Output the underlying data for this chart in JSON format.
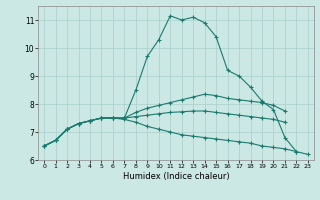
{
  "xlabel": "Humidex (Indice chaleur)",
  "xlim": [
    -0.5,
    23.5
  ],
  "ylim": [
    6.0,
    11.5
  ],
  "yticks": [
    6,
    7,
    8,
    9,
    10,
    11
  ],
  "xticks": [
    0,
    1,
    2,
    3,
    4,
    5,
    6,
    7,
    8,
    9,
    10,
    11,
    12,
    13,
    14,
    15,
    16,
    17,
    18,
    19,
    20,
    21,
    22,
    23
  ],
  "background_color": "#cce8e4",
  "grid_color": "#aacfcb",
  "line_color": "#1a7a6e",
  "lines": [
    {
      "x": [
        0,
        1,
        2,
        3,
        4,
        5,
        6,
        7,
        8,
        9,
        10,
        11,
        12,
        13,
        14,
        15,
        16,
        17,
        18,
        19,
        20,
        21,
        22
      ],
      "y": [
        6.5,
        6.7,
        7.1,
        7.3,
        7.4,
        7.5,
        7.5,
        7.5,
        8.5,
        9.7,
        10.3,
        11.15,
        11.0,
        11.1,
        10.9,
        10.4,
        9.2,
        9.0,
        8.6,
        8.1,
        7.8,
        6.8,
        6.3
      ]
    },
    {
      "x": [
        0,
        1,
        2,
        3,
        4,
        5,
        6,
        7,
        8,
        9,
        10,
        11,
        12,
        13,
        14,
        15,
        16,
        17,
        18,
        19,
        20,
        21
      ],
      "y": [
        6.5,
        6.7,
        7.1,
        7.3,
        7.4,
        7.5,
        7.5,
        7.5,
        7.7,
        7.85,
        7.95,
        8.05,
        8.15,
        8.25,
        8.35,
        8.3,
        8.2,
        8.15,
        8.1,
        8.05,
        7.95,
        7.75
      ]
    },
    {
      "x": [
        0,
        1,
        2,
        3,
        4,
        5,
        6,
        7,
        8,
        9,
        10,
        11,
        12,
        13,
        14,
        15,
        16,
        17,
        18,
        19,
        20,
        21
      ],
      "y": [
        6.5,
        6.7,
        7.1,
        7.3,
        7.4,
        7.5,
        7.5,
        7.5,
        7.55,
        7.6,
        7.65,
        7.7,
        7.72,
        7.75,
        7.75,
        7.7,
        7.65,
        7.6,
        7.55,
        7.5,
        7.45,
        7.35
      ]
    },
    {
      "x": [
        0,
        1,
        2,
        3,
        4,
        5,
        6,
        7,
        8,
        9,
        10,
        11,
        12,
        13,
        14,
        15,
        16,
        17,
        18,
        19,
        20,
        21,
        22,
        23
      ],
      "y": [
        6.5,
        6.7,
        7.1,
        7.3,
        7.4,
        7.5,
        7.5,
        7.45,
        7.35,
        7.2,
        7.1,
        7.0,
        6.9,
        6.85,
        6.8,
        6.75,
        6.7,
        6.65,
        6.6,
        6.5,
        6.45,
        6.4,
        6.3,
        6.2
      ]
    }
  ]
}
